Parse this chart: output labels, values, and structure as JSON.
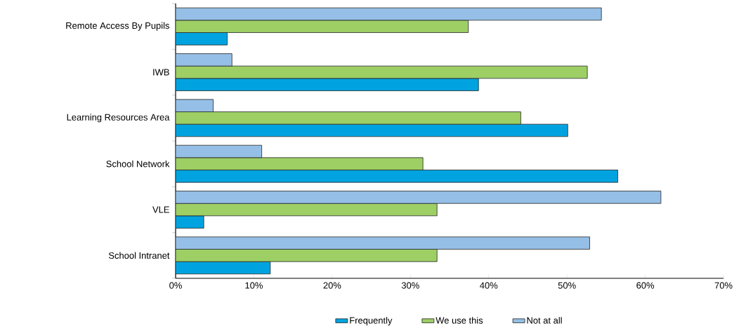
{
  "chart_data": {
    "type": "bar",
    "orientation": "horizontal",
    "categories": [
      "Remote Access By Pupils",
      "IWB",
      "Learning Resources Area",
      "School Network",
      "VLE",
      "School Intranet"
    ],
    "series": [
      {
        "name": "Frequently",
        "color": "#00a3e0",
        "values": [
          6.6,
          38.7,
          50.1,
          56.5,
          3.6,
          12.1
        ]
      },
      {
        "name": "We use this",
        "color": "#9dcf65",
        "values": [
          37.4,
          52.6,
          44.1,
          31.6,
          33.4,
          33.4
        ]
      },
      {
        "name": "Not at all",
        "color": "#95bfe6",
        "values": [
          54.4,
          7.2,
          4.8,
          11.0,
          62.0,
          52.9
        ]
      }
    ],
    "xlim": [
      0,
      70
    ],
    "xticks": [
      {
        "value": 0,
        "label": "0%"
      },
      {
        "value": 10,
        "label": "10%"
      },
      {
        "value": 20,
        "label": "20%"
      },
      {
        "value": 30,
        "label": "30%"
      },
      {
        "value": 40,
        "label": "40%"
      },
      {
        "value": 50,
        "label": "50%"
      },
      {
        "value": 60,
        "label": "60%"
      },
      {
        "value": 70,
        "label": "70%"
      }
    ],
    "legend": "bottom"
  }
}
